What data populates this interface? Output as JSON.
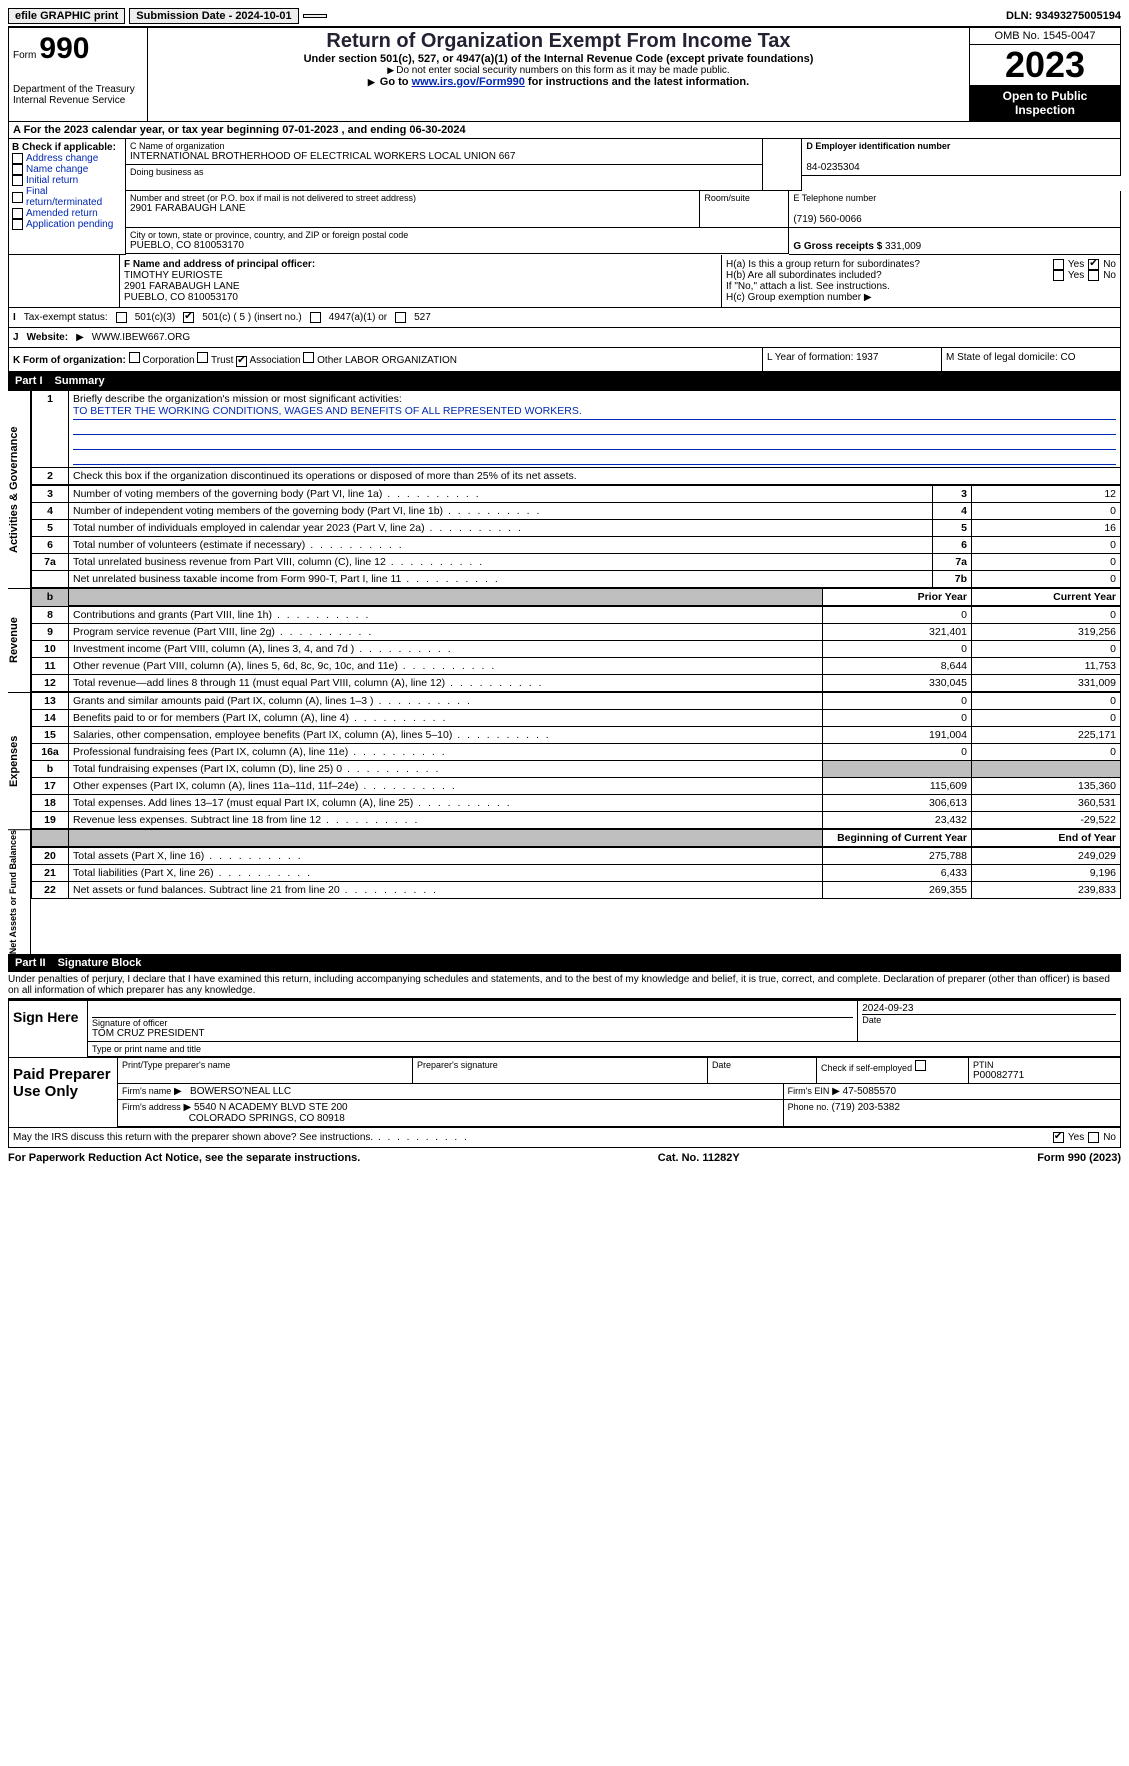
{
  "topbar": {
    "efile": "efile GRAPHIC print",
    "submission": "Submission Date - 2024-10-01",
    "dln": "DLN: 93493275005194"
  },
  "header": {
    "form_label": "Form",
    "form_number": "990",
    "title": "Return of Organization Exempt From Income Tax",
    "subtitle": "Under section 501(c), 527, or 4947(a)(1) of the Internal Revenue Code (except private foundations)",
    "ssn_note": "Do not enter social security numbers on this form as it may be made public.",
    "goto": "Go to ",
    "goto_link": "www.irs.gov/Form990",
    "goto_after": " for instructions and the latest information.",
    "dept": "Department of the Treasury\nInternal Revenue Service",
    "omb": "OMB No. 1545-0047",
    "year": "2023",
    "open_public": "Open to Public Inspection"
  },
  "rowA": "A For the 2023 calendar year, or tax year beginning 07-01-2023    , and ending 06-30-2024",
  "boxB": {
    "label": "B Check if applicable:",
    "items": [
      "Address change",
      "Name change",
      "Initial return",
      "Final return/terminated",
      "Amended return",
      "Application pending"
    ]
  },
  "boxC": {
    "name_label": "C Name of organization",
    "name": "INTERNATIONAL BROTHERHOOD OF ELECTRICAL WORKERS LOCAL UNION 667",
    "dba_label": "Doing business as",
    "dba": "",
    "street_label": "Number and street (or P.O. box if mail is not delivered to street address)",
    "street": "2901 FARABAUGH LANE",
    "room_label": "Room/suite",
    "room": "",
    "city_label": "City or town, state or province, country, and ZIP or foreign postal code",
    "city": "PUEBLO, CO  810053170"
  },
  "boxD": {
    "label": "D Employer identification number",
    "value": "84-0235304"
  },
  "boxE": {
    "label": "E Telephone number",
    "value": "(719) 560-0066"
  },
  "boxG": {
    "label": "G Gross receipts $",
    "value": "331,009"
  },
  "boxF": {
    "label": "F  Name and address of principal officer:",
    "name": "TIMOTHY EURIOSTE",
    "line1": "2901 FARABAUGH LANE",
    "line2": "PUEBLO, CO  810053170"
  },
  "boxH": {
    "a_label": "H(a)  Is this a group return for subordinates?",
    "b_label": "H(b)  Are all subordinates included?",
    "b_note": "If \"No,\" attach a list. See instructions.",
    "c_label": "H(c)  Group exemption number",
    "ha_yes": false,
    "ha_no": true,
    "hb_yes": false,
    "hb_no": false,
    "yes": "Yes",
    "no": "No"
  },
  "taxExempt": {
    "label": "Tax-exempt status:",
    "c3": "501(c)(3)",
    "c_other": "501(c) ( 5 ) (insert no.)",
    "c_other_checked": true,
    "a1": "4947(a)(1) or",
    "s527": "527"
  },
  "website": {
    "label": "Website:",
    "value": "WWW.IBEW667.ORG"
  },
  "rowK": {
    "label": "K Form of organization:",
    "corp": "Corporation",
    "trust": "Trust",
    "assoc": "Association",
    "assoc_checked": true,
    "other": "Other",
    "other_val": "LABOR ORGANIZATION",
    "L": "L Year of formation: 1937",
    "M": "M State of legal domicile: CO"
  },
  "partI": {
    "label": "Part I",
    "title": "Summary",
    "mission_label": "Briefly describe the organization's mission or most significant activities:",
    "mission": "TO BETTER THE WORKING CONDITIONS, WAGES AND BENEFITS OF ALL REPRESENTED WORKERS.",
    "line2": "Check this box      if the organization discontinued its operations or disposed of more than 25% of its net assets.",
    "sidebars": {
      "gov": "Activities & Governance",
      "rev": "Revenue",
      "exp": "Expenses",
      "net": "Net Assets or Fund Balances"
    },
    "col_headers": {
      "prior": "Prior Year",
      "current": "Current Year",
      "begin": "Beginning of Current Year",
      "end": "End of Year"
    },
    "gov_rows": [
      {
        "n": "3",
        "desc": "Number of voting members of the governing body (Part VI, line 1a)",
        "box": "3",
        "val": "12"
      },
      {
        "n": "4",
        "desc": "Number of independent voting members of the governing body (Part VI, line 1b)",
        "box": "4",
        "val": "0"
      },
      {
        "n": "5",
        "desc": "Total number of individuals employed in calendar year 2023 (Part V, line 2a)",
        "box": "5",
        "val": "16"
      },
      {
        "n": "6",
        "desc": "Total number of volunteers (estimate if necessary)",
        "box": "6",
        "val": "0"
      },
      {
        "n": "7a",
        "desc": "Total unrelated business revenue from Part VIII, column (C), line 12",
        "box": "7a",
        "val": "0"
      },
      {
        "n": "",
        "desc": "Net unrelated business taxable income from Form 990-T, Part I, line 11",
        "box": "7b",
        "val": "0"
      }
    ],
    "rev_rows": [
      {
        "n": "8",
        "desc": "Contributions and grants (Part VIII, line 1h)",
        "p": "0",
        "c": "0"
      },
      {
        "n": "9",
        "desc": "Program service revenue (Part VIII, line 2g)",
        "p": "321,401",
        "c": "319,256"
      },
      {
        "n": "10",
        "desc": "Investment income (Part VIII, column (A), lines 3, 4, and 7d )",
        "p": "0",
        "c": "0"
      },
      {
        "n": "11",
        "desc": "Other revenue (Part VIII, column (A), lines 5, 6d, 8c, 9c, 10c, and 11e)",
        "p": "8,644",
        "c": "11,753"
      },
      {
        "n": "12",
        "desc": "Total revenue—add lines 8 through 11 (must equal Part VIII, column (A), line 12)",
        "p": "330,045",
        "c": "331,009"
      }
    ],
    "exp_rows": [
      {
        "n": "13",
        "desc": "Grants and similar amounts paid (Part IX, column (A), lines 1–3 )",
        "p": "0",
        "c": "0"
      },
      {
        "n": "14",
        "desc": "Benefits paid to or for members (Part IX, column (A), line 4)",
        "p": "0",
        "c": "0"
      },
      {
        "n": "15",
        "desc": "Salaries, other compensation, employee benefits (Part IX, column (A), lines 5–10)",
        "p": "191,004",
        "c": "225,171"
      },
      {
        "n": "16a",
        "desc": "Professional fundraising fees (Part IX, column (A), line 11e)",
        "p": "0",
        "c": "0"
      },
      {
        "n": "b",
        "desc": "Total fundraising expenses (Part IX, column (D), line 25) 0",
        "p": "",
        "c": "",
        "shaded": true
      },
      {
        "n": "17",
        "desc": "Other expenses (Part IX, column (A), lines 11a–11d, 11f–24e)",
        "p": "115,609",
        "c": "135,360"
      },
      {
        "n": "18",
        "desc": "Total expenses. Add lines 13–17 (must equal Part IX, column (A), line 25)",
        "p": "306,613",
        "c": "360,531"
      },
      {
        "n": "19",
        "desc": "Revenue less expenses. Subtract line 18 from line 12",
        "p": "23,432",
        "c": "-29,522"
      }
    ],
    "net_rows": [
      {
        "n": "20",
        "desc": "Total assets (Part X, line 16)",
        "p": "275,788",
        "c": "249,029"
      },
      {
        "n": "21",
        "desc": "Total liabilities (Part X, line 26)",
        "p": "6,433",
        "c": "9,196"
      },
      {
        "n": "22",
        "desc": "Net assets or fund balances. Subtract line 21 from line 20",
        "p": "269,355",
        "c": "239,833"
      }
    ]
  },
  "partII": {
    "label": "Part II",
    "title": "Signature Block",
    "penalty": "Under penalties of perjury, I declare that I have examined this return, including accompanying schedules and statements, and to the best of my knowledge and belief, it is true, correct, and complete. Declaration of preparer (other than officer) is based on all information of which preparer has any knowledge."
  },
  "sign": {
    "label": "Sign Here",
    "sig_officer": "Signature of officer",
    "officer_name": "TOM CRUZ PRESIDENT",
    "type_name": "Type or print name and title",
    "date_label": "Date",
    "date": "2024-09-23"
  },
  "paid": {
    "label": "Paid Preparer Use Only",
    "print_label": "Print/Type preparer's name",
    "sig_label": "Preparer's signature",
    "date_label": "Date",
    "check_label": "Check         if self-employed",
    "ptin_label": "PTIN",
    "ptin": "P00082771",
    "firm_label": "Firm's name",
    "firm": "BOWERSO'NEAL LLC",
    "ein_label": "Firm's EIN",
    "ein": "47-5085570",
    "addr_label": "Firm's address",
    "addr1": "5540 N ACADEMY BLVD STE 200",
    "addr2": "COLORADO SPRINGS, CO  80918",
    "phone_label": "Phone no.",
    "phone": "(719) 203-5382"
  },
  "discuss": {
    "q": "May the IRS discuss this return with the preparer shown above? See instructions.",
    "yes": "Yes",
    "no": "No",
    "yes_checked": true
  },
  "footer": {
    "pra": "For Paperwork Reduction Act Notice, see the separate instructions.",
    "cat": "Cat. No. 11282Y",
    "form": "Form 990 (2023)"
  }
}
